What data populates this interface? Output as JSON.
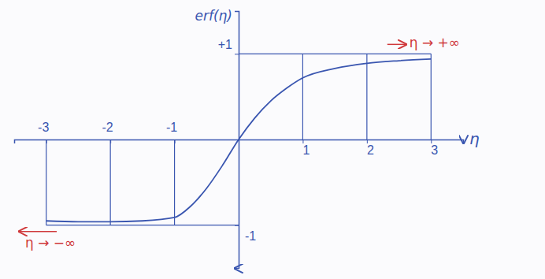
{
  "chart_data": {
    "type": "line",
    "x_label": "η",
    "y_label": "erf(η)",
    "x": [
      -3,
      -2.5,
      -2,
      -1.5,
      -1,
      -0.75,
      -0.5,
      -0.25,
      0,
      0.25,
      0.5,
      0.75,
      1,
      1.5,
      2,
      2.5,
      3
    ],
    "values": [
      -0.95,
      -0.96,
      -0.96,
      -0.95,
      -0.91,
      -0.78,
      -0.57,
      -0.3,
      0,
      0.25,
      0.45,
      0.6,
      0.72,
      0.83,
      0.89,
      0.92,
      0.94
    ],
    "color": "#3a56b0",
    "xlim": [
      -3.5,
      3.5
    ],
    "xticks": [
      -3,
      -2,
      -1,
      1,
      2,
      3
    ],
    "ylim": [
      -1.5,
      1.5
    ],
    "yticks": [
      {
        "value": 1,
        "label": "+1"
      },
      -1
    ],
    "grid": true,
    "annotations": [
      "η → +∞",
      "η → −∞"
    ]
  }
}
